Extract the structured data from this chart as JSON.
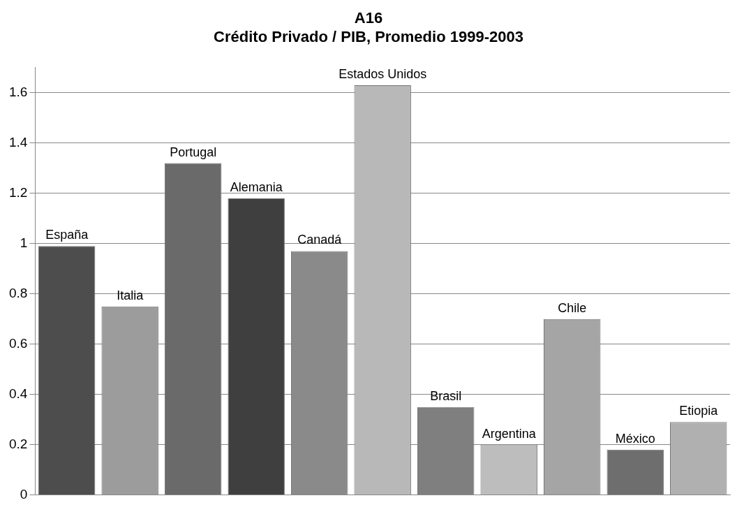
{
  "chart_data": {
    "type": "bar",
    "title": "A16",
    "subtitle": "Crédito Privado / PIB, Promedio 1999-2003",
    "categories": [
      "España",
      "Italia",
      "Portugal",
      "Alemania",
      "Canadá",
      "Estados Unidos",
      "Brasil",
      "Argentina",
      "Chile",
      "México",
      "Etiopia"
    ],
    "values": [
      0.99,
      0.75,
      1.32,
      1.18,
      0.97,
      1.63,
      0.35,
      0.2,
      0.7,
      0.18,
      0.29
    ],
    "colors": [
      "#4d4d4d",
      "#9c9c9c",
      "#6a6a6a",
      "#3f3f3f",
      "#8a8a8a",
      "#b8b8b8",
      "#7f7f7f",
      "#bdbdbd",
      "#a5a5a5",
      "#6e6e6e",
      "#b0b0b0"
    ],
    "ylim": [
      0,
      1.7
    ],
    "yticks": [
      0,
      0.2,
      0.4,
      0.6,
      0.8,
      1,
      1.2,
      1.4,
      1.6
    ],
    "grid": "y",
    "legend": false
  }
}
